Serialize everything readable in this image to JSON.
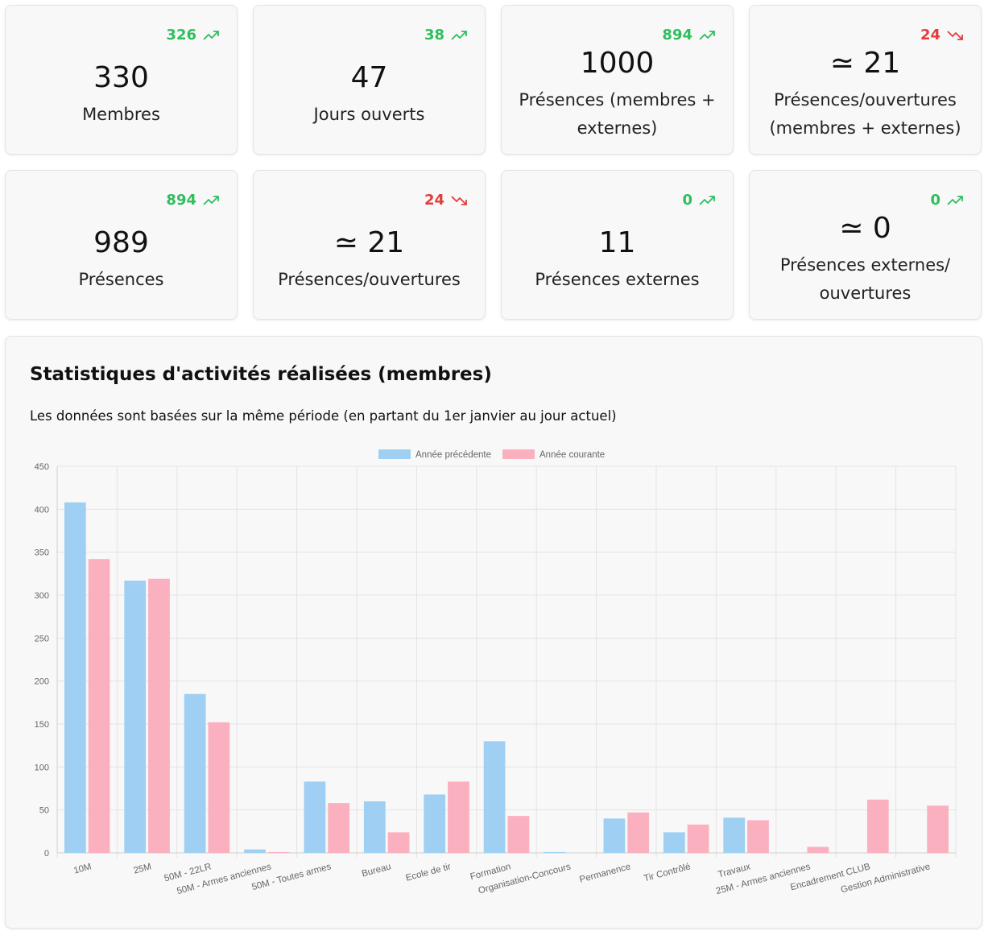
{
  "stats": [
    {
      "value": "330",
      "label": "Membres",
      "trend": "326",
      "direction": "up"
    },
    {
      "value": "47",
      "label": "Jours ouverts",
      "trend": "38",
      "direction": "up"
    },
    {
      "value": "1000",
      "label": "Présences (membres + externes)",
      "trend": "894",
      "direction": "up"
    },
    {
      "value": "≃ 21",
      "label": "Présences/ouvertures (membres + externes)",
      "trend": "24",
      "direction": "down"
    },
    {
      "value": "989",
      "label": "Présences",
      "trend": "894",
      "direction": "up"
    },
    {
      "value": "≃ 21",
      "label": "Présences/ouvertures",
      "trend": "24",
      "direction": "down"
    },
    {
      "value": "11",
      "label": "Présences externes",
      "trend": "0",
      "direction": "up"
    },
    {
      "value": "≃ 0",
      "label": "Présences externes/ ouvertures",
      "trend": "0",
      "direction": "up"
    }
  ],
  "colors": {
    "up": "#2fbe5e",
    "down": "#e23d3d",
    "previous": "#9fd0f3",
    "current": "#fbb0c0"
  },
  "icons": {
    "up": "trending-up-icon",
    "down": "trending-down-icon"
  },
  "chart_section": {
    "title": "Statistiques d'activités réalisées (membres)",
    "subtitle": "Les données sont basées sur la même période (en partant du 1er janvier au jour actuel)"
  },
  "chart_data": {
    "type": "bar",
    "categories": [
      "10M",
      "25M",
      "50M - 22LR",
      "50M - Armes anciennes",
      "50M - Toutes armes",
      "Bureau",
      "Ecole de tir",
      "Formation",
      "Organisation-Concours",
      "Permanence",
      "Tir Contrôlé",
      "Travaux",
      "25M - Armes anciennes",
      "Encadrement CLUB",
      "Gestion Administrative"
    ],
    "series": [
      {
        "name": "Année précédente",
        "values": [
          408,
          317,
          185,
          4,
          83,
          60,
          68,
          130,
          1,
          40,
          24,
          41,
          0,
          0,
          0
        ]
      },
      {
        "name": "Année courante",
        "values": [
          342,
          319,
          152,
          1,
          58,
          24,
          83,
          43,
          0,
          47,
          33,
          38,
          7,
          62,
          55
        ]
      }
    ],
    "ylim": [
      0,
      450
    ],
    "yticks": [
      0,
      50,
      100,
      150,
      200,
      250,
      300,
      350,
      400,
      450
    ],
    "legend": "top",
    "grid": true
  }
}
